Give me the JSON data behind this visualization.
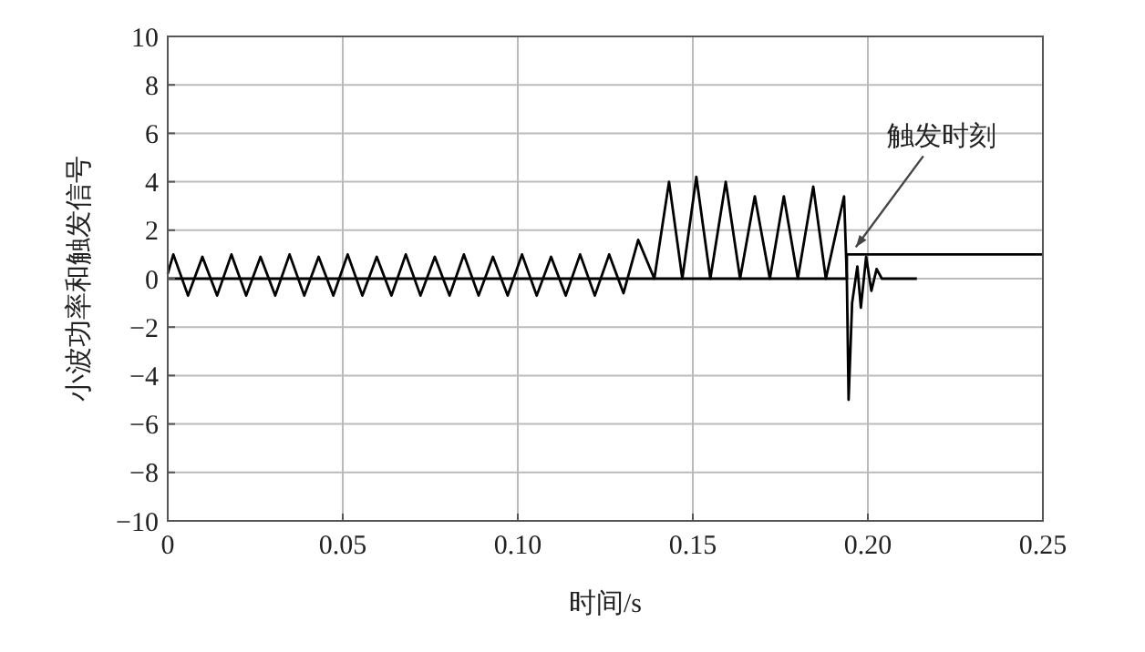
{
  "chart_data": {
    "type": "line",
    "xlabel": "时间/s",
    "ylabel": "小波功率和触发信号",
    "xlim": [
      0,
      0.25
    ],
    "ylim": [
      -10,
      10
    ],
    "xticks": [
      0,
      0.05,
      {
        "value": 0.1,
        "label": "0.10"
      },
      0.15,
      {
        "value": 0.2,
        "label": "0.20"
      },
      0.25
    ],
    "yticks": [
      -10,
      -8,
      -6,
      -4,
      -2,
      0,
      2,
      4,
      6,
      8,
      10
    ],
    "grid": true,
    "series": [
      {
        "color": "#000000",
        "x": [
          0,
          0.0016,
          0.0058,
          0.0099,
          0.0141,
          0.0182,
          0.0224,
          0.0265,
          0.0307,
          0.0348,
          0.039,
          0.0431,
          0.0473,
          0.0514,
          0.0556,
          0.0597,
          0.0639,
          0.068,
          0.0722,
          0.0763,
          0.0805,
          0.0846,
          0.0888,
          0.0929,
          0.0971,
          0.1012,
          0.1054,
          0.1095,
          0.1137,
          0.1178,
          0.122,
          0.1261,
          0.1302,
          0.1344,
          0.139,
          0.1432,
          0.147,
          0.151,
          0.155,
          0.1594,
          0.1635,
          0.1677,
          0.172,
          0.176,
          0.18,
          0.1844,
          0.188,
          0.1932,
          0.194,
          0.1945,
          0.1955,
          0.197,
          0.198,
          0.1995,
          0.201,
          0.2025,
          0.204,
          0.214
        ],
        "values": [
          0.2,
          1,
          -0.7,
          0.9,
          -0.7,
          1,
          -0.7,
          0.9,
          -0.7,
          1,
          -0.7,
          0.9,
          -0.7,
          1,
          -0.7,
          0.9,
          -0.7,
          1,
          -0.7,
          0.9,
          -0.7,
          1,
          -0.7,
          0.9,
          -0.7,
          1,
          -0.7,
          0.9,
          -0.7,
          1,
          -0.7,
          1,
          -0.6,
          1.6,
          0,
          4,
          0,
          4.2,
          0,
          4,
          0,
          3.4,
          0,
          3.4,
          0,
          3.8,
          0,
          3.4,
          0,
          -5,
          -1,
          0.5,
          -1.2,
          0.9,
          -0.5,
          0.4,
          0,
          0
        ]
      },
      {
        "color": "#000000",
        "x": [
          0,
          0.194,
          0.194,
          0.25
        ],
        "values": [
          0,
          0,
          1,
          1
        ]
      }
    ],
    "annotations": [
      {
        "text": "触发时刻",
        "x": 0.195,
        "y": 1
      }
    ]
  }
}
